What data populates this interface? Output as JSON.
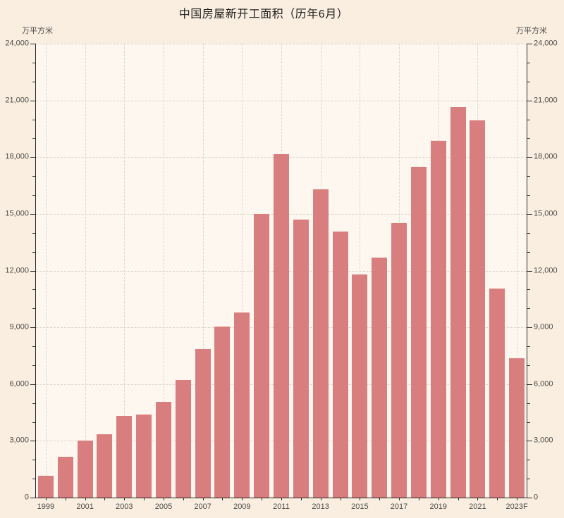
{
  "title": "中国房屋新开工面积（历年6月）",
  "axis_units": {
    "left": "万平方米",
    "right": "万平方米"
  },
  "chart_data": {
    "type": "bar",
    "title": "中国房屋新开工面积（历年6月）",
    "ylabel": "万平方米",
    "categories": [
      "1999",
      "2000",
      "2001",
      "2002",
      "2003",
      "2004",
      "2005",
      "2006",
      "2007",
      "2008",
      "2009",
      "2010",
      "2011",
      "2012",
      "2013",
      "2014",
      "2015",
      "2016",
      "2017",
      "2018",
      "2019",
      "2020",
      "2021",
      "2022",
      "2023F"
    ],
    "values": [
      1150,
      2150,
      3000,
      3350,
      4300,
      4400,
      5050,
      6200,
      7850,
      9050,
      9800,
      15000,
      18150,
      14700,
      16300,
      14050,
      11800,
      12700,
      14500,
      17500,
      18850,
      20650,
      19950,
      11050,
      7350
    ],
    "ylim": [
      0,
      24000
    ],
    "ytick_step": 3000,
    "minor_ytick_step": 1000,
    "ytick_labels": [
      "0",
      "3,000",
      "6,000",
      "9,000",
      "12,000",
      "15,000",
      "18,000",
      "21,000",
      "24,000"
    ],
    "xtick_labels_shown": [
      "1999",
      "2001",
      "2003",
      "2005",
      "2007",
      "2009",
      "2011",
      "2013",
      "2015",
      "2017",
      "2019",
      "2021",
      "2023F"
    ],
    "xlabel_every": 2,
    "grid": "dashed, horizontal at majors and vertical at labeled years",
    "legend": "none",
    "bar_color": "#D97E7E",
    "plot_bg_color": "#FDF7F0",
    "page_bg_color": "#FAEEE0",
    "grid_color": "#D9D2C5",
    "axis_color": "#2a2a28",
    "text_color": "#4c4c48"
  }
}
